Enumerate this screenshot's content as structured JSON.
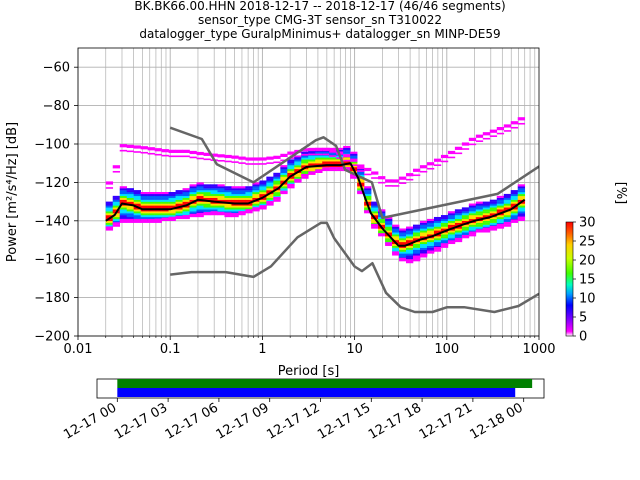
{
  "header": {
    "title_line1": "BK.BK66.00.HHN   2018-12-17 -- 2018-12-17  (46/46 segments)",
    "title_line2": "sensor_type CMG-3T sensor_sn T310022",
    "title_line3": "datalogger_type GuralpMinimus+ datalogger_sn MINP-DE59"
  },
  "colors": {
    "grid": "#b0b0b0",
    "noise_model": "#666666",
    "mean_curve": "#000000",
    "timeline_green": "#008000",
    "timeline_blue": "#0000ff",
    "colorbar": [
      "#ffffff",
      "#ff00ff",
      "#7a00ff",
      "#0000ff",
      "#00a0ff",
      "#00ffc0",
      "#40ff00",
      "#c8ff00",
      "#ffd000",
      "#ff6000",
      "#ff0000"
    ]
  },
  "chart_data": [
    {
      "type": "heatmap",
      "title": "",
      "xlabel": "Period [s]",
      "ylabel": "Power [m²/s⁴/Hz] [dB]",
      "x_scale": "log",
      "xlim": [
        0.01,
        1000
      ],
      "ylim": [
        -200,
        -50
      ],
      "x_ticks": [
        0.01,
        0.1,
        1,
        10,
        100,
        1000
      ],
      "x_tick_labels": [
        "0.01",
        "0.1",
        "1",
        "10",
        "100",
        "1000"
      ],
      "y_ticks": [
        -200,
        -180,
        -160,
        -140,
        -120,
        -100,
        -80,
        -60
      ],
      "y_tick_labels": [
        "−200",
        "−180",
        "−160",
        "−140",
        "−120",
        "−100",
        "−80",
        "−60"
      ],
      "grid": true,
      "colorbar": {
        "label": "[%]",
        "range": [
          0,
          30
        ],
        "ticks": [
          0,
          5,
          10,
          15,
          20,
          25,
          30
        ],
        "tick_labels": [
          "0",
          "5",
          "10",
          "15",
          "20",
          "25",
          "30"
        ]
      },
      "series": [
        {
          "role": "high-noise-model",
          "x": [
            0.1,
            0.22,
            0.32,
            0.8,
            3.8,
            4.6,
            6.3,
            7.9,
            15.4,
            20,
            354.8,
            10000
          ],
          "y": [
            -91.5,
            -97.4,
            -110.5,
            -120,
            -98,
            -96.5,
            -101,
            -113.5,
            -120,
            -138.5,
            -126,
            -80.1
          ]
        },
        {
          "role": "low-noise-model",
          "x": [
            0.1,
            0.17,
            0.4,
            0.8,
            1.24,
            2.4,
            4.3,
            5.0,
            6.0,
            10,
            12,
            15.6,
            21.9,
            31.6,
            45,
            70,
            101,
            154,
            328,
            600,
            1000
          ],
          "y": [
            -168,
            -166.7,
            -166.7,
            -169.2,
            -163.7,
            -148.6,
            -141.1,
            -141.1,
            -149,
            -163.8,
            -166.2,
            -162.1,
            -177.5,
            -185,
            -187.5,
            -187.5,
            -185,
            -185,
            -187.5,
            -184.4,
            -178
          ]
        },
        {
          "role": "mean-psd",
          "x": [
            0.02,
            0.025,
            0.03,
            0.04,
            0.05,
            0.07,
            0.1,
            0.15,
            0.2,
            0.3,
            0.5,
            0.7,
            1,
            1.5,
            2,
            3,
            5,
            7,
            9,
            11,
            13,
            15,
            20,
            25,
            30,
            35,
            40,
            50,
            70,
            100,
            150,
            200,
            300,
            500,
            700
          ],
          "y": [
            -140,
            -137,
            -131,
            -132,
            -134,
            -134,
            -134,
            -132,
            -129,
            -130,
            -131,
            -131,
            -128,
            -123,
            -117,
            -112,
            -111,
            -111,
            -110,
            -118,
            -128,
            -136,
            -144,
            -149,
            -153,
            -153,
            -152,
            -150,
            -148,
            -145,
            -142,
            -140,
            -138,
            -134,
            -129
          ]
        },
        {
          "role": "upper-percentile",
          "x": [
            0.02,
            0.025,
            0.03,
            0.05,
            0.07,
            0.1,
            0.15,
            0.2,
            0.3,
            0.5,
            0.7,
            1,
            1.5,
            2,
            3,
            5,
            7,
            9,
            11,
            13,
            15,
            20,
            25,
            30,
            40,
            50,
            70,
            100,
            150,
            200,
            300,
            500,
            700
          ],
          "y": [
            -124,
            -115,
            -101,
            -102,
            -103,
            -104,
            -104,
            -105,
            -106,
            -107,
            -108,
            -108,
            -107,
            -105,
            -103,
            -103,
            -105,
            -107,
            -111,
            -113,
            -114,
            -118,
            -120,
            -119,
            -116,
            -113,
            -110,
            -106,
            -101,
            -97,
            -94,
            -90,
            -86
          ]
        },
        {
          "role": "lower-percentile",
          "x": [
            0.02,
            0.03,
            0.05,
            0.07,
            0.1,
            0.15,
            0.2,
            0.3,
            0.5,
            1,
            1.5,
            2,
            3,
            5,
            7,
            9,
            11,
            13,
            15,
            20,
            25,
            30,
            35,
            40,
            50,
            70,
            100,
            150,
            200,
            300,
            500,
            700
          ],
          "y": [
            -145,
            -140,
            -140,
            -140,
            -139,
            -138,
            -137,
            -136,
            -137,
            -133,
            -128,
            -122,
            -116,
            -113,
            -113,
            -113,
            -122,
            -132,
            -140,
            -148,
            -154,
            -159,
            -161,
            -161,
            -159,
            -156,
            -152,
            -149,
            -146,
            -144,
            -141,
            -138
          ]
        }
      ]
    },
    {
      "type": "timeline",
      "title": "",
      "x_tick_labels": [
        "12-17 00",
        "12-17 03",
        "12-17 06",
        "12-17 09",
        "12-17 12",
        "12-17 15",
        "12-17 18",
        "12-17 21",
        "12-18 00"
      ],
      "x_ticks_hours": [
        0,
        3,
        6,
        9,
        12,
        15,
        18,
        21,
        24
      ],
      "xlim_hours": [
        -1.2,
        25.2
      ],
      "bars": [
        {
          "role": "data-coverage",
          "start_hours": 0,
          "end_hours": 24.5
        },
        {
          "role": "psd-segments",
          "start_hours": 0,
          "end_hours": 23.5
        }
      ]
    }
  ]
}
